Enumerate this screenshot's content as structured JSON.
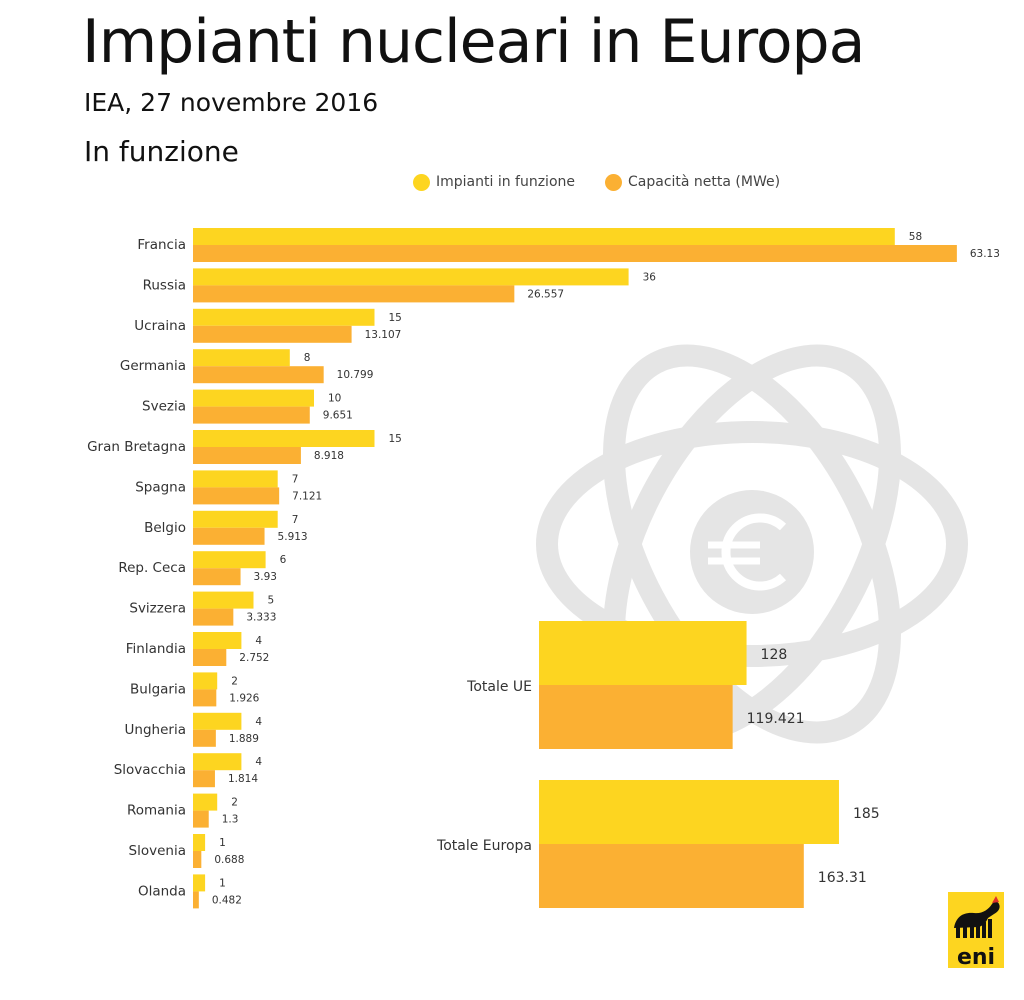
{
  "header": {
    "title": "Impianti nucleari in Europa",
    "subtitle": "IEA, 27 novembre 2016",
    "section": "In funzione"
  },
  "logo": {
    "text": "eni",
    "icon": "six-legged-dog-icon"
  },
  "colors": {
    "plants": "#fdd520",
    "capacity": "#fbb033",
    "watermark": "#e5e5e5",
    "logo_bg": "#fdd520"
  },
  "chart_data": {
    "type": "bar",
    "orientation": "horizontal",
    "legend": {
      "position": "top"
    },
    "grid": false,
    "series": [
      {
        "name": "Impianti in funzione",
        "color": "#fdd520",
        "values": [
          58,
          36,
          15,
          8,
          10,
          15,
          7,
          7,
          6,
          5,
          4,
          2,
          4,
          4,
          2,
          1,
          1
        ],
        "labels": [
          "58",
          "36",
          "15",
          "8",
          "10",
          "15",
          "7",
          "7",
          "6",
          "5",
          "4",
          "2",
          "4",
          "4",
          "2",
          "1",
          "1"
        ]
      },
      {
        "name": "Capacità netta (MWe)",
        "color": "#fbb033",
        "values": [
          63.13,
          26.557,
          13.107,
          10.799,
          9.651,
          8.918,
          7.121,
          5.913,
          3.93,
          3.333,
          2.752,
          1.926,
          1.889,
          1.814,
          1.3,
          0.688,
          0.482
        ],
        "labels": [
          "63.13",
          "26.557",
          "13.107",
          "10.799",
          "9.651",
          "8.918",
          "7.121",
          "5.913",
          "3.93",
          "3.333",
          "2.752",
          "1.926",
          "1.889",
          "1.814",
          "1.3",
          "0.688",
          "0.482"
        ]
      }
    ],
    "categories": [
      "Francia",
      "Russia",
      "Ucraina",
      "Germania",
      "Svezia",
      "Gran Bretagna",
      "Spagna",
      "Belgio",
      "Rep. Ceca",
      "Svizzera",
      "Finlandia",
      "Bulgaria",
      "Ungheria",
      "Slovacchia",
      "Romania",
      "Slovenia",
      "Olanda"
    ],
    "totals": {
      "categories": [
        "Totale UE",
        "Totale Europa"
      ],
      "plants": [
        128,
        185
      ],
      "plants_labels": [
        "128",
        "185"
      ],
      "capacity": [
        119.421,
        163.31
      ],
      "capacity_labels": [
        "119.421",
        "163.31"
      ]
    }
  }
}
